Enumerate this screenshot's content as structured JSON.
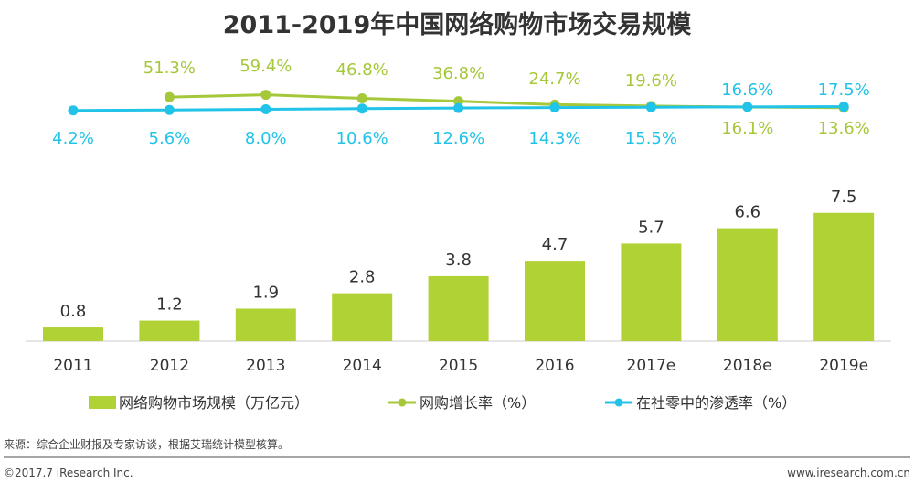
{
  "chart_data": {
    "type": "bar+line",
    "title": "2011-2019年中国网络购物市场交易规模",
    "categories": [
      "2011",
      "2012",
      "2013",
      "2014",
      "2015",
      "2016",
      "2017e",
      "2018e",
      "2019e"
    ],
    "series": [
      {
        "name": "网络购物市场规模（万亿元）",
        "type": "bar",
        "color": "#b1d234",
        "values": [
          0.8,
          1.2,
          1.9,
          2.8,
          3.8,
          4.7,
          5.7,
          6.6,
          7.5
        ],
        "labels": [
          "0.8",
          "1.2",
          "1.9",
          "2.8",
          "3.8",
          "4.7",
          "5.7",
          "6.6",
          "7.5"
        ]
      },
      {
        "name": "网购增长率（%）",
        "type": "line",
        "color": "#a5c83a",
        "values": [
          null,
          51.3,
          59.4,
          46.8,
          36.8,
          24.7,
          19.6,
          16.1,
          13.6
        ],
        "labels": [
          "",
          "51.3%",
          "59.4%",
          "46.8%",
          "36.8%",
          "24.7%",
          "19.6%",
          "16.1%",
          "13.6%"
        ]
      },
      {
        "name": "在社零中的渗透率（%）",
        "type": "line",
        "color": "#22c3e8",
        "values": [
          4.2,
          5.6,
          8.0,
          10.6,
          12.6,
          14.3,
          15.5,
          16.6,
          17.5
        ],
        "labels": [
          "4.2%",
          "5.6%",
          "8.0%",
          "10.6%",
          "12.6%",
          "14.3%",
          "15.5%",
          "16.6%",
          "17.5%"
        ]
      }
    ],
    "legend": "bottom",
    "grid": false
  },
  "footer": {
    "source": "来源：综合企业财报及专家访谈，根据艾瑞统计模型核算。",
    "copyright": "©2017.7 iResearch Inc.",
    "website": "www.iresearch.com.cn"
  }
}
